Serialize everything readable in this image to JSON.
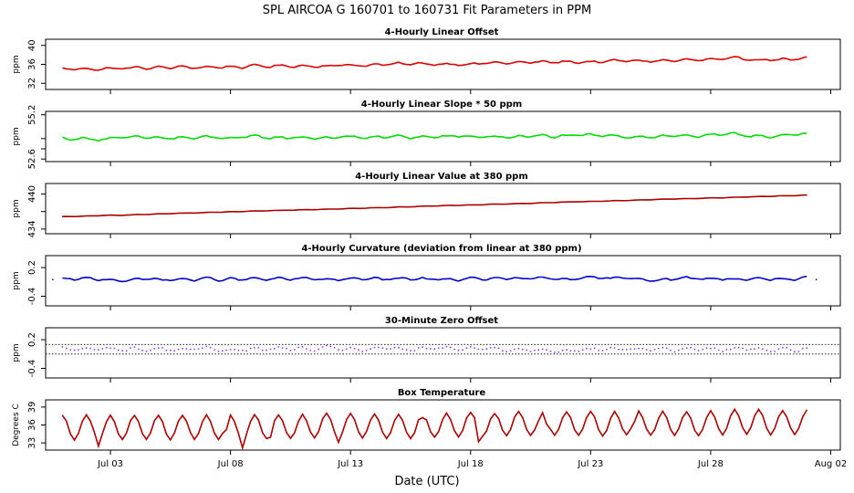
{
  "title": "SPL    AIRCOA G   160701 to 160731   Fit Parameters in PPM",
  "xlabel": "Date (UTC)",
  "x_ticks": [
    {
      "label": "Jul 03",
      "day": 3
    },
    {
      "label": "Jul 08",
      "day": 8
    },
    {
      "label": "Jul 13",
      "day": 13
    },
    {
      "label": "Jul 18",
      "day": 18
    },
    {
      "label": "Jul 23",
      "day": 23
    },
    {
      "label": "Jul 28",
      "day": 28
    },
    {
      "label": "Aug 02",
      "day": 33
    }
  ],
  "x_range_days": [
    0.3,
    33.4
  ],
  "chart_data": [
    {
      "type": "line",
      "title": "4-Hourly Linear Offset",
      "ylabel": "ppm",
      "ylim": [
        30.7,
        41.3
      ],
      "yticks": [
        32,
        36,
        40
      ],
      "color": "#dd0000",
      "x_start": 1.0,
      "x_end": 32.0,
      "baseline": [
        35.0,
        37.2
      ],
      "noise": 0.35,
      "cycle_amp": 0.2,
      "markers": false
    },
    {
      "type": "line",
      "title": "4-Hourly Linear Slope * 50 ppm",
      "ylabel": "ppm",
      "ylim": [
        52.45,
        55.4
      ],
      "yticks": [
        52.6,
        53.2,
        53.8,
        55.2
      ],
      "tick_labels": [
        "52.6",
        "",
        "",
        "55.2"
      ],
      "color": "#00dd00",
      "x_start": 1.0,
      "x_end": 32.0,
      "baseline": [
        53.8,
        54.0
      ],
      "noise": 0.12,
      "cycle_amp": 0.06,
      "markers": false
    },
    {
      "type": "line",
      "title": "4-Hourly Linear Value at 380 ppm",
      "ylabel": "ppm",
      "ylim": [
        433.2,
        441.8
      ],
      "yticks": [
        434,
        437,
        440
      ],
      "tick_labels": [
        "434",
        "",
        "440"
      ],
      "color": "#aa0000",
      "x_start": 1.0,
      "x_end": 32.0,
      "baseline": [
        436.1,
        439.8
      ],
      "noise": 0.03,
      "cycle_amp": 0.03,
      "markers": true
    },
    {
      "type": "line",
      "title": "4-Hourly Curvature (deviation from linear at 380 ppm)",
      "ylabel": "ppm",
      "ylim": [
        -0.6,
        0.45
      ],
      "yticks": [
        -0.4,
        0.2
      ],
      "tick_labels": [
        "-0.4",
        "0.2"
      ],
      "color": "#0000cc",
      "x_start": 1.0,
      "x_end": 32.0,
      "baseline": [
        -0.05,
        -0.03
      ],
      "noise": 0.04,
      "cycle_amp": 0.02,
      "markers": false,
      "stray_points": [
        0.6,
        32.4
      ]
    },
    {
      "type": "scatter",
      "title": "30-Minute Zero Offset",
      "ylabel": "ppm",
      "ylim": [
        -0.6,
        0.45
      ],
      "yticks": [
        -0.4,
        0.2
      ],
      "tick_labels": [
        "-0.4",
        "0.2"
      ],
      "color": "#9933ee",
      "x_start": 1.0,
      "x_end": 32.0,
      "baseline": [
        0.0,
        0.0
      ],
      "noise": 0.05,
      "cycle_amp": 0.03,
      "markers": true,
      "reference_lines": [
        0.1,
        -0.1
      ]
    },
    {
      "type": "line",
      "title": "Box Temperature",
      "ylabel": "Degrees C",
      "ylim": [
        31.8,
        40.2
      ],
      "yticks": [
        33,
        36,
        39
      ],
      "color": "#aa0000",
      "x_start": 1.0,
      "x_end": 32.0,
      "baseline": [
        35.5,
        36.5
      ],
      "noise": 0.25,
      "cycle_amp": 2.0,
      "markers": true
    }
  ]
}
